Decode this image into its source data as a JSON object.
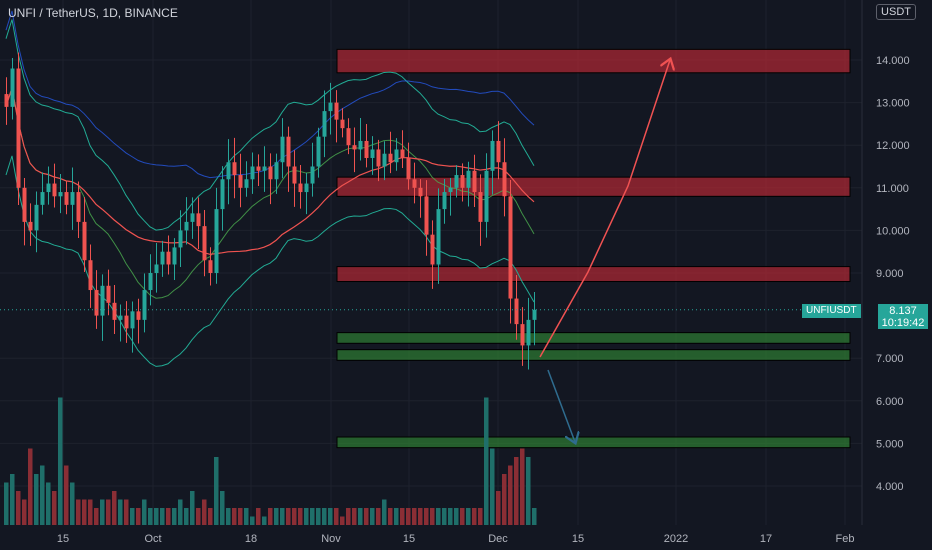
{
  "header": {
    "title": "UNFI / TetherUS, 1D, BINANCE"
  },
  "unit": "USDT",
  "last_price": {
    "symbol": "UNFIUSDT",
    "value": "8.137",
    "countdown": "10:19:42"
  },
  "colors": {
    "bg": "#131722",
    "up": "#26a69a",
    "down": "#ef5350",
    "resistance": "#b22833",
    "support": "#2e7d32",
    "bb": "#22ab94",
    "ma": "#ef5350",
    "ma_long": "#2962ff"
  },
  "chart_data": {
    "type": "candlestick",
    "y_axis": {
      "labels": [
        "14.000",
        "13.000",
        "12.000",
        "11.000",
        "10.000",
        "9.000",
        "7.000",
        "6.000",
        "5.000",
        "4.000"
      ],
      "min": 3.5,
      "max": 14.8
    },
    "x_axis": {
      "labels": [
        "15",
        "Oct",
        "18",
        "Nov",
        "15",
        "Dec",
        "15",
        "2022",
        "17",
        "Feb"
      ]
    },
    "resistance_zones": [
      [
        13.7,
        14.25
      ],
      [
        10.8,
        11.25
      ],
      [
        8.8,
        9.15
      ]
    ],
    "support_zones": [
      [
        7.35,
        7.6
      ],
      [
        6.95,
        7.2
      ],
      [
        4.9,
        5.15
      ]
    ],
    "close_trend": [
      12.9,
      13.8,
      11.0,
      10.2,
      10.0,
      10.6,
      10.9,
      11.1,
      10.8,
      10.9,
      10.6,
      10.9,
      10.2,
      9.3,
      8.6,
      8.0,
      8.7,
      8.3,
      7.9,
      8.0,
      7.7,
      8.1,
      7.9,
      8.6,
      9.0,
      9.2,
      9.5,
      9.2,
      9.6,
      10.0,
      10.2,
      10.4,
      10.1,
      9.3,
      9.0,
      10.5,
      11.2,
      11.6,
      11.3,
      11.0,
      11.2,
      11.5,
      11.4,
      11.5,
      11.2,
      11.6,
      12.2,
      11.5,
      11.1,
      10.9,
      11.1,
      11.5,
      12.2,
      12.8,
      13.0,
      12.6,
      12.4,
      12.0,
      11.9,
      12.1,
      11.7,
      11.9,
      11.5,
      11.8,
      11.6,
      11.9,
      11.7,
      11.2,
      11.0,
      10.8,
      9.9,
      9.2,
      10.5,
      10.9,
      11.0,
      11.3,
      11.0,
      11.4,
      10.9,
      10.2,
      11.4,
      12.1,
      11.6,
      10.8,
      8.4,
      7.8,
      7.3,
      7.9,
      8.137
    ],
    "volume_trend": [
      2.5,
      3.0,
      2.0,
      1.5,
      4.5,
      3.0,
      3.5,
      2.5,
      2.0,
      7.5,
      3.5,
      2.5,
      1.5,
      1.5,
      1.5,
      1.0,
      1.5,
      1.5,
      2.0,
      1.5,
      1.5,
      1.0,
      1.0,
      1.5,
      1.0,
      1.0,
      1.0,
      1.0,
      1.0,
      1.5,
      1.0,
      2.0,
      1.0,
      1.5,
      1.0,
      4.0,
      2.0,
      1.0,
      1.0,
      1.0,
      1.0,
      0.5,
      1.0,
      0.5,
      1.0,
      1.0,
      1.0,
      1.0,
      1.0,
      1.0,
      1.0,
      1.0,
      1.0,
      1.0,
      1.0,
      1.0,
      0.5,
      1.0,
      1.0,
      1.0,
      1.0,
      1.0,
      1.0,
      1.5,
      1.0,
      1.0,
      1.0,
      1.0,
      1.0,
      1.0,
      1.0,
      1.0,
      1.0,
      1.0,
      1.0,
      1.0,
      1.0,
      1.0,
      1.0,
      1.0,
      7.5,
      4.5,
      2.0,
      3.0,
      3.5,
      4.0,
      4.5,
      4.0,
      1.0
    ],
    "projected_path_up": [
      [
        7.0,
        7.0
      ],
      [
        8.8,
        9.0
      ],
      [
        10.9,
        11.0
      ],
      [
        13.9,
        14.0
      ]
    ],
    "projected_path_down": [
      [
        7.0,
        7.0
      ],
      [
        5.0,
        5.0
      ]
    ]
  }
}
